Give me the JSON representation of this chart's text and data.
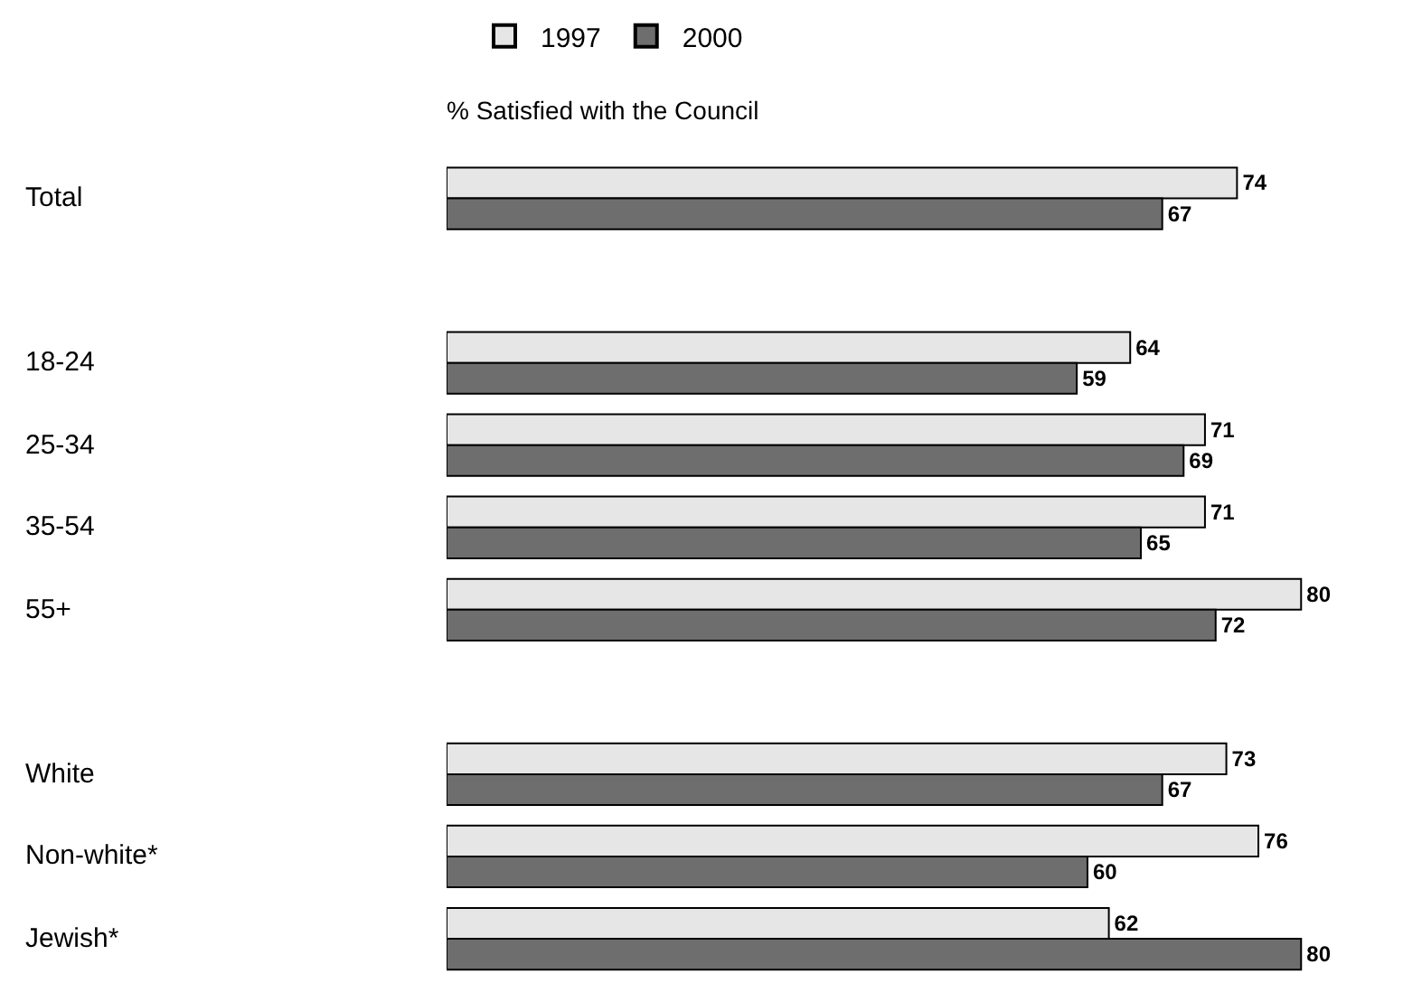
{
  "chart_data": {
    "type": "bar",
    "orientation": "horizontal",
    "title": "% Satisfied with the Council",
    "categories": [
      "Total",
      null,
      "18-24",
      "25-34",
      "35-54",
      "55+",
      null,
      "White",
      "Non-white*",
      "Jewish*"
    ],
    "series": [
      {
        "name": "1997",
        "color": "#e6e6e6",
        "values": [
          74,
          null,
          64,
          71,
          71,
          80,
          null,
          73,
          76,
          62
        ]
      },
      {
        "name": "2000",
        "color": "#6e6e6e",
        "values": [
          67,
          null,
          59,
          69,
          65,
          72,
          null,
          67,
          60,
          80
        ]
      }
    ],
    "data_labels": true,
    "legend": "top"
  }
}
